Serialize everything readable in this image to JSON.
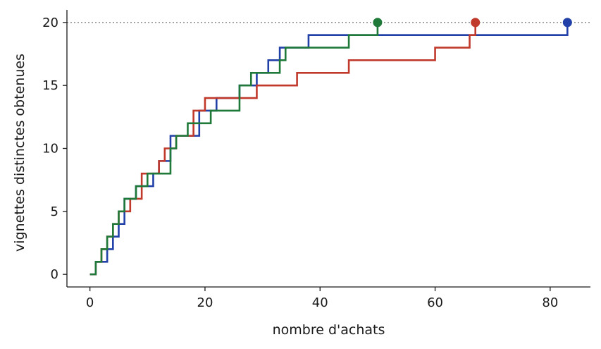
{
  "chart_data": {
    "type": "line",
    "step": true,
    "title": "",
    "xlabel": "nombre d'achats",
    "ylabel": "vignettes distinctes obtenues",
    "xlim": [
      -4,
      87
    ],
    "ylim": [
      -1,
      21
    ],
    "xticks": [
      0,
      20,
      40,
      60,
      80
    ],
    "yticks": [
      0,
      5,
      10,
      15,
      20
    ],
    "reference_line": {
      "y": 20,
      "style": "dotted",
      "color": "#888888"
    },
    "grid": false,
    "legend": "none",
    "series": [
      {
        "color": "#2140a8",
        "x": [
          0,
          1,
          3,
          4,
          5,
          6,
          8,
          11,
          12,
          14,
          17,
          19,
          22,
          26,
          29,
          31,
          33,
          38,
          50,
          83
        ],
        "values": [
          0,
          1,
          2,
          3,
          4,
          6,
          7,
          8,
          9,
          11,
          11,
          13,
          14,
          15,
          16,
          17,
          18,
          19,
          19,
          20
        ],
        "endpoint": {
          "x": 83,
          "y": 20
        }
      },
      {
        "color": "#c0392b",
        "x": [
          0,
          1,
          2,
          3,
          4,
          5,
          7,
          9,
          12,
          13,
          15,
          18,
          20,
          29,
          36,
          45,
          60,
          66,
          67
        ],
        "values": [
          0,
          1,
          2,
          3,
          4,
          5,
          6,
          8,
          9,
          10,
          11,
          13,
          14,
          15,
          16,
          17,
          18,
          19,
          20
        ],
        "endpoint": {
          "x": 67,
          "y": 20
        }
      },
      {
        "color": "#1f7a3a",
        "x": [
          0,
          1,
          2,
          3,
          4,
          5,
          6,
          8,
          10,
          14,
          15,
          17,
          21,
          26,
          27,
          28,
          33,
          34,
          45,
          50
        ],
        "values": [
          0,
          1,
          2,
          3,
          4,
          5,
          6,
          7,
          8,
          10,
          11,
          12,
          13,
          15,
          15,
          16,
          17,
          18,
          19,
          20
        ],
        "endpoint": {
          "x": 50,
          "y": 20
        }
      }
    ]
  }
}
